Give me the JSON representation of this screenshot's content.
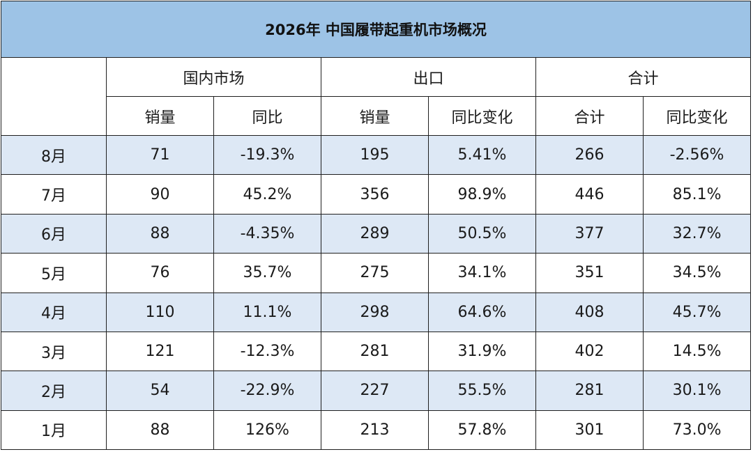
{
  "title": "2026年 中国履带起重机市场概况",
  "groups": [
    "国内市场",
    "出口",
    "合计"
  ],
  "subheaders": [
    "销量",
    "同比",
    "销量",
    "同比变化",
    "合计",
    "同比变化"
  ],
  "rows": [
    {
      "month": "8月",
      "cells": [
        "71",
        "-19.3%",
        "195",
        "5.41%",
        "266",
        "-2.56%"
      ]
    },
    {
      "month": "7月",
      "cells": [
        "90",
        "45.2%",
        "356",
        "98.9%",
        "446",
        "85.1%"
      ]
    },
    {
      "month": "6月",
      "cells": [
        "88",
        "-4.35%",
        "289",
        "50.5%",
        "377",
        "32.7%"
      ]
    },
    {
      "month": "5月",
      "cells": [
        "76",
        "35.7%",
        "275",
        "34.1%",
        "351",
        "34.5%"
      ]
    },
    {
      "month": "4月",
      "cells": [
        "110",
        "11.1%",
        "298",
        "64.6%",
        "408",
        "45.7%"
      ]
    },
    {
      "month": "3月",
      "cells": [
        "121",
        "-12.3%",
        "281",
        "31.9%",
        "402",
        "14.5%"
      ]
    },
    {
      "month": "2月",
      "cells": [
        "54",
        "-22.9%",
        "227",
        "55.5%",
        "281",
        "30.1%"
      ]
    },
    {
      "month": "1月",
      "cells": [
        "88",
        "126%",
        "213",
        "57.8%",
        "301",
        "73.0%"
      ]
    }
  ],
  "colors": {
    "title_bg": "#9dc3e6",
    "row_tint": "#dde8f5",
    "border": "#1f1f1f"
  }
}
